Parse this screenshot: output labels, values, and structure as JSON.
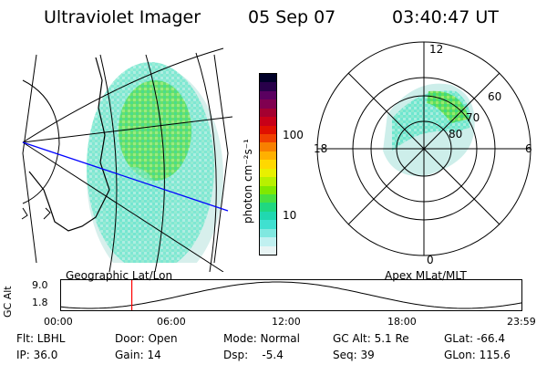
{
  "header": {
    "instrument": "Ultraviolet Imager",
    "date": "05 Sep 07",
    "time": "03:40:47 UT"
  },
  "colorbar": {
    "unit_label": "photon cm⁻²s⁻¹",
    "ticks": [
      "100",
      "10"
    ],
    "colors": [
      "#000028",
      "#28004a",
      "#5a0060",
      "#800050",
      "#a40030",
      "#c80018",
      "#e01000",
      "#f04000",
      "#f88000",
      "#ffb000",
      "#ffd800",
      "#e8f000",
      "#b8f000",
      "#80e800",
      "#48e040",
      "#20d880",
      "#20d8b0",
      "#40e0d0",
      "#80e8e0",
      "#c0f0f0",
      "#e8f4f4"
    ]
  },
  "geo_map": {
    "label": "Geographic Lat/Lon"
  },
  "polar_map": {
    "label": "Apex MLat/MLT",
    "mlt_labels": {
      "top": "12",
      "left": "18",
      "right": "6",
      "bottom": "0"
    },
    "lat_labels": [
      "60",
      "70",
      "80"
    ]
  },
  "altitude_plot": {
    "ylabel": "GC Alt",
    "yticks": [
      "9.0",
      "1.8"
    ],
    "xticks": [
      "00:00",
      "06:00",
      "12:00",
      "18:00",
      "23:59"
    ],
    "marker_time_hours": 3.68,
    "marker_color": "#ff0000"
  },
  "status": {
    "filter": "Flt: LBHL",
    "door": "Door: Open",
    "mode": "Mode: Normal",
    "gc_alt": "GC Alt: 5.1 Re",
    "glat": "GLat: -66.4",
    "ip": "IP: 36.0",
    "gain": "Gain: 14",
    "dsp": "Dsp:    -5.4",
    "seq": "Seq: 39",
    "glon": "GLon: 115.6"
  }
}
